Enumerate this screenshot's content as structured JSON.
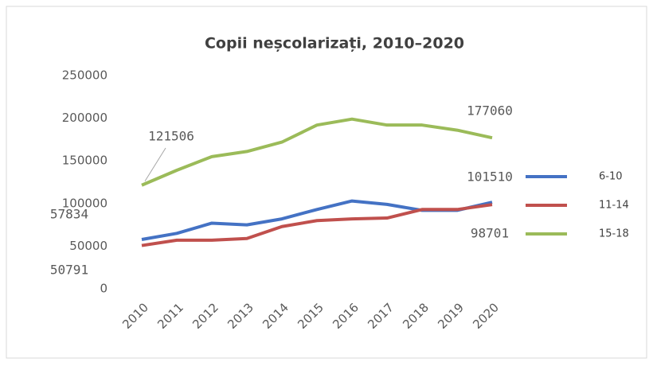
{
  "chart_data": {
    "type": "line",
    "title": "Copii neșcolarizați, 2010–2020",
    "categories": [
      "2010",
      "2011",
      "2012",
      "2013",
      "2014",
      "2015",
      "2016",
      "2017",
      "2018",
      "2019",
      "2020"
    ],
    "series": [
      {
        "name": "6-10",
        "color": "#4472c4",
        "values": [
          57834,
          65000,
          77000,
          75000,
          82000,
          93000,
          103000,
          99000,
          92000,
          92000,
          101510
        ]
      },
      {
        "name": "11-14",
        "color": "#c0504d",
        "values": [
          50791,
          57000,
          57000,
          59000,
          73000,
          80000,
          82000,
          83000,
          93000,
          93000,
          98701
        ]
      },
      {
        "name": "15-18",
        "color": "#9bbb59",
        "values": [
          121506,
          139000,
          155000,
          161000,
          172000,
          192000,
          199000,
          192000,
          192000,
          186000,
          177060
        ]
      }
    ],
    "ylim": [
      0,
      250000
    ],
    "yticks": [
      0,
      50000,
      100000,
      150000,
      200000,
      250000
    ],
    "grid": false,
    "legend": "right"
  }
}
